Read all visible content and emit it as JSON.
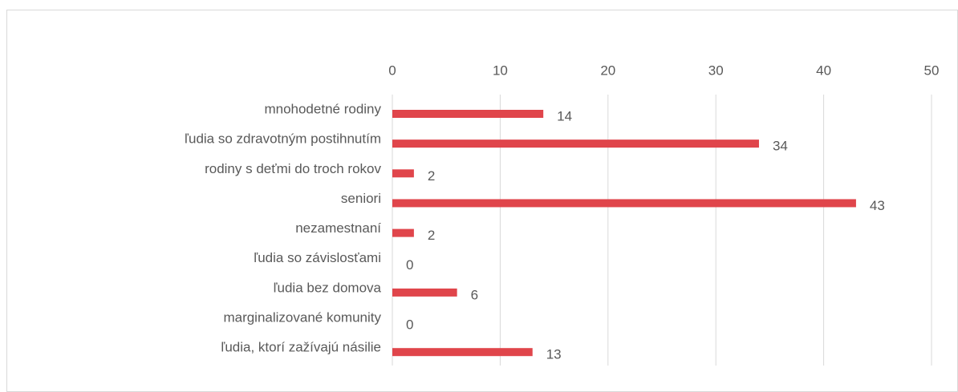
{
  "chart_data": {
    "type": "barh",
    "categories": [
      "mnohodetné rodiny",
      "ľudia so zdravotným postihnutím",
      "rodiny s deťmi do troch rokov",
      "seniori",
      "nezamestnaní",
      "ľudia so závislosťami",
      "ľudia bez domova",
      "marginalizované komunity",
      "ľudia, ktorí zažívajú násilie"
    ],
    "values": [
      14,
      34,
      2,
      43,
      2,
      0,
      6,
      0,
      13
    ],
    "color": "#e0454b",
    "xlim": [
      0,
      50
    ],
    "xticks": [
      0,
      10,
      20,
      30,
      40,
      50
    ],
    "grid": true
  }
}
